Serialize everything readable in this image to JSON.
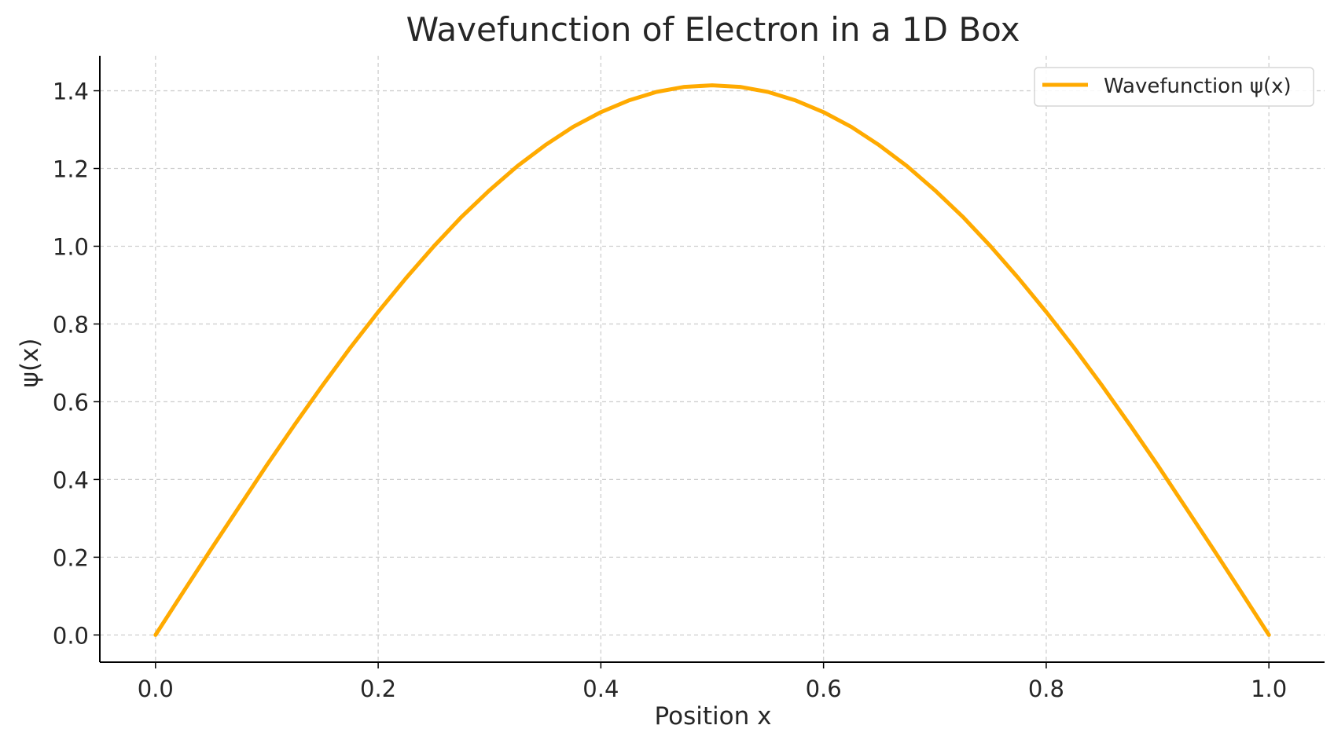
{
  "chart_data": {
    "type": "line",
    "title": "Wavefunction of Electron in a 1D Box",
    "xlabel": "Position x",
    "ylabel": "ψ(x)",
    "xlim": [
      -0.05,
      1.05
    ],
    "ylim": [
      -0.07,
      1.49
    ],
    "xticks": [
      0.0,
      0.2,
      0.4,
      0.6,
      0.8,
      1.0
    ],
    "xtick_labels": [
      "0.0",
      "0.2",
      "0.4",
      "0.6",
      "0.8",
      "1.0"
    ],
    "yticks": [
      0.0,
      0.2,
      0.4,
      0.6,
      0.8,
      1.0,
      1.2,
      1.4
    ],
    "ytick_labels": [
      "0.0",
      "0.2",
      "0.4",
      "0.6",
      "0.8",
      "1.0",
      "1.2",
      "1.4"
    ],
    "grid": true,
    "legend_position": "top-right",
    "series": [
      {
        "name": "Wavefunction ψ(x)",
        "color": "#FFAA00",
        "x": [
          0.0,
          0.025,
          0.05,
          0.075,
          0.1,
          0.125,
          0.15,
          0.175,
          0.2,
          0.225,
          0.25,
          0.275,
          0.3,
          0.325,
          0.35,
          0.375,
          0.4,
          0.425,
          0.45,
          0.475,
          0.5,
          0.525,
          0.55,
          0.575,
          0.6,
          0.625,
          0.65,
          0.675,
          0.7,
          0.725,
          0.75,
          0.775,
          0.8,
          0.825,
          0.85,
          0.875,
          0.9,
          0.925,
          0.95,
          0.975,
          1.0
        ],
        "y": [
          0.0,
          0.111,
          0.221,
          0.329,
          0.437,
          0.541,
          0.642,
          0.739,
          0.831,
          0.918,
          1.0,
          1.076,
          1.144,
          1.206,
          1.26,
          1.307,
          1.345,
          1.375,
          1.397,
          1.41,
          1.414,
          1.41,
          1.397,
          1.375,
          1.345,
          1.307,
          1.26,
          1.206,
          1.144,
          1.076,
          1.0,
          0.918,
          0.831,
          0.739,
          0.642,
          0.541,
          0.437,
          0.329,
          0.221,
          0.111,
          0.0
        ]
      }
    ]
  }
}
